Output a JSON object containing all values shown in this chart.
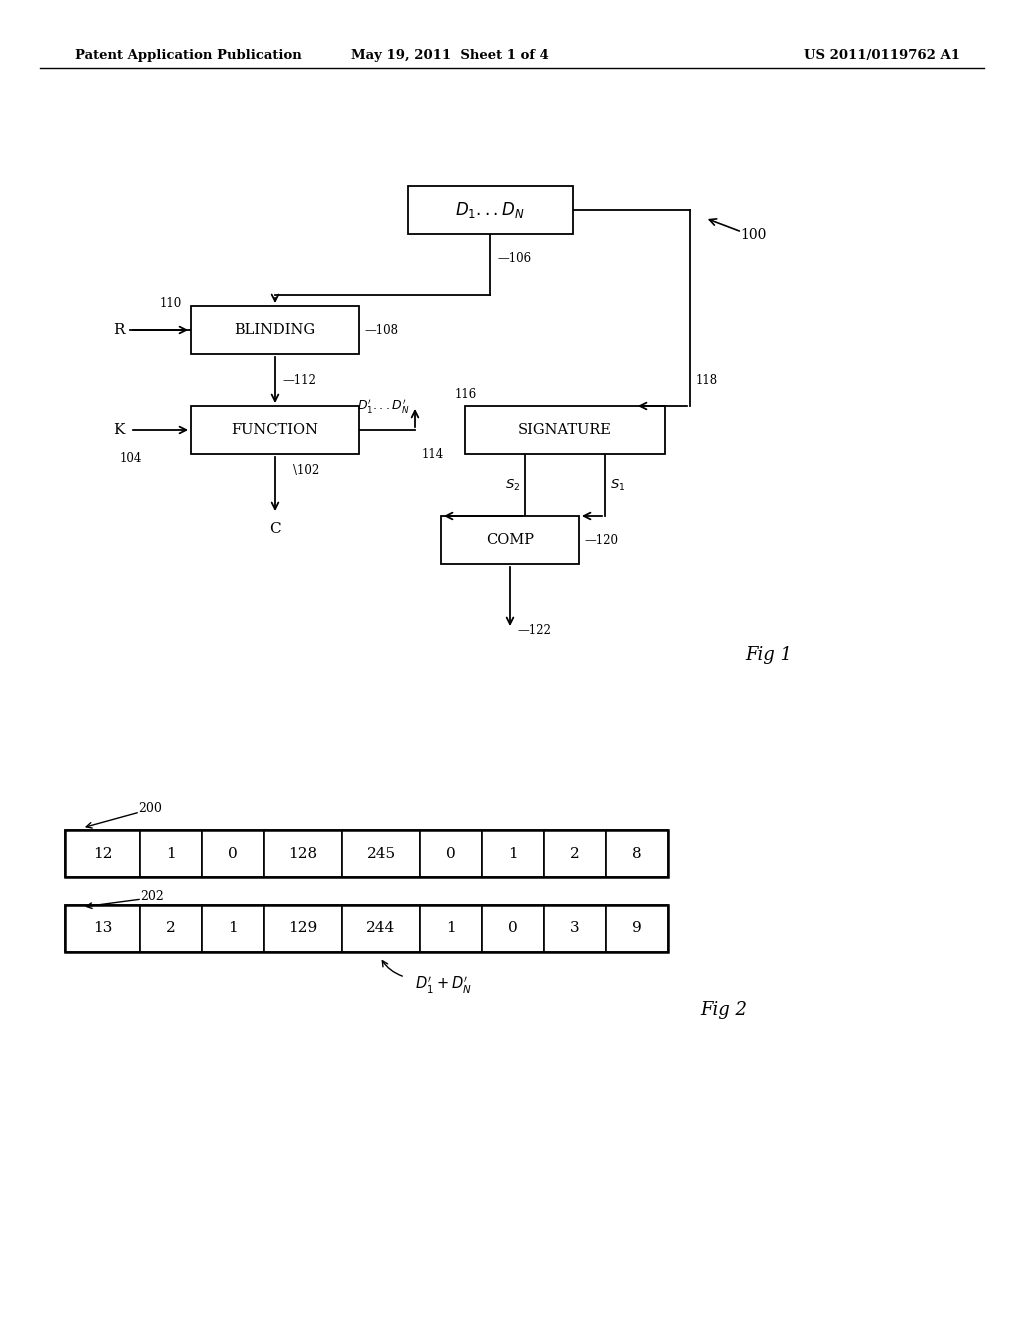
{
  "bg_color": "#ffffff",
  "header_left": "Patent Application Publication",
  "header_mid": "May 19, 2011  Sheet 1 of 4",
  "header_right": "US 2011/0119762 A1",
  "fig1_label": "Fig 1",
  "fig2_label": "Fig 2",
  "row1": [
    12,
    1,
    0,
    128,
    245,
    0,
    1,
    2,
    8
  ],
  "row2": [
    13,
    2,
    1,
    129,
    244,
    1,
    0,
    3,
    9
  ]
}
